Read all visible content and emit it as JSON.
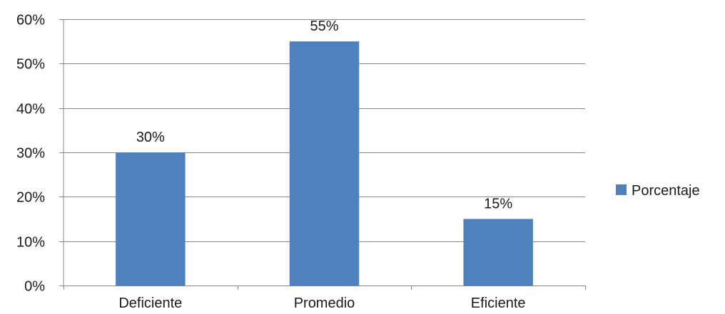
{
  "chart_data": {
    "type": "bar",
    "categories": [
      "Deficiente",
      "Promedio",
      "Eficiente"
    ],
    "series": [
      {
        "name": "Porcentaje",
        "values": [
          0.3,
          0.55,
          0.15
        ],
        "labels": [
          "30%",
          "55%",
          "15%"
        ],
        "color": "#4f81bd"
      }
    ],
    "ylim": [
      0,
      0.6
    ],
    "yticks": [
      0,
      0.1,
      0.2,
      0.3,
      0.4,
      0.5,
      0.6
    ],
    "ytick_labels": [
      "0%",
      "10%",
      "20%",
      "30%",
      "40%",
      "50%",
      "60%"
    ],
    "grid": true,
    "legend_position": "right",
    "gridline_color": "#878787"
  }
}
